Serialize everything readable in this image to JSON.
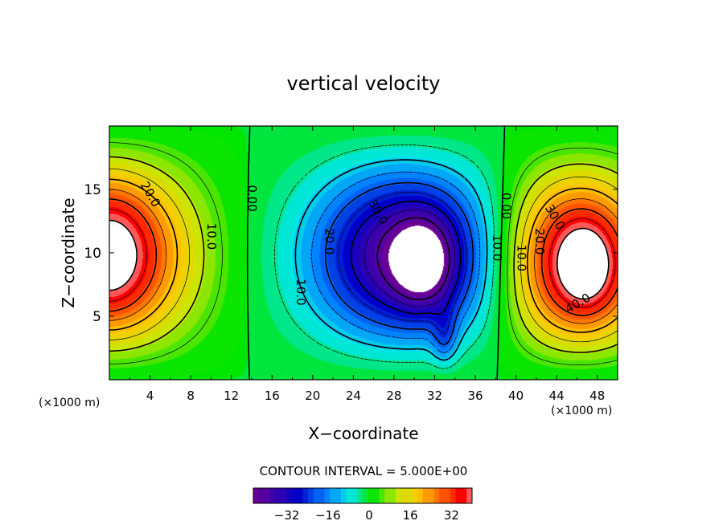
{
  "chart_data": {
    "type": "heatmap",
    "title": "vertical velocity",
    "xlabel": "X−coordinate",
    "ylabel": "Z−coordinate",
    "x_unit_left": "(×1000 m)",
    "x_unit_right": "(×1000 m)",
    "xlim": [
      0,
      50
    ],
    "ylim": [
      0,
      20
    ],
    "xticks": [
      4,
      8,
      12,
      16,
      20,
      24,
      28,
      32,
      36,
      40,
      44,
      48
    ],
    "yticks": [
      5,
      10,
      15
    ],
    "contour_interval_label": "CONTOUR INTERVAL = 5.000E+00",
    "colorbar": {
      "min": -45,
      "max": 40,
      "ticks": [
        -32,
        -16,
        0,
        16,
        32
      ],
      "tick_labels": [
        "−32",
        "−16",
        "0",
        "16",
        "32"
      ]
    },
    "contour_labels": [
      {
        "text": "20.0",
        "x": 4.0,
        "y": 14.6,
        "rot": 60
      },
      {
        "text": "10.0",
        "x": 10.0,
        "y": 11.3,
        "rot": 90
      },
      {
        "text": "0.00",
        "x": 14.0,
        "y": 14.3,
        "rot": 90
      },
      {
        "text": "10.0",
        "x": 18.8,
        "y": 6.9,
        "rot": 90
      },
      {
        "text": "20.0",
        "x": 21.6,
        "y": 10.9,
        "rot": 90
      },
      {
        "text": "30.0",
        "x": 26.4,
        "y": 13.2,
        "rot": 60
      },
      {
        "text": "10.0",
        "x": 38.1,
        "y": 10.4,
        "rot": 90
      },
      {
        "text": "0.00",
        "x": 39.0,
        "y": 13.7,
        "rot": 90
      },
      {
        "text": "10.0",
        "x": 40.5,
        "y": 9.6,
        "rot": 90
      },
      {
        "text": "20.0",
        "x": 42.3,
        "y": 10.9,
        "rot": 90
      },
      {
        "text": "30.0",
        "x": 43.8,
        "y": 12.8,
        "rot": 60
      },
      {
        "text": "40.0",
        "x": 46.1,
        "y": 6.0,
        "rot": -30
      }
    ],
    "cells": [
      {
        "cx": 0,
        "cy": 9.5,
        "rx": 8,
        "ry": 11,
        "amp": 40
      },
      {
        "cx": 0,
        "cy": 9.5,
        "rx": 3.5,
        "ry": 6,
        "amp": 8
      },
      {
        "cx": 46,
        "cy": 8.5,
        "rx": 7,
        "ry": 10,
        "amp": 44
      },
      {
        "cx": 47,
        "cy": 8.5,
        "rx": 2.5,
        "ry": 3.5,
        "amp": 10
      },
      {
        "cx": 29,
        "cy": 9.5,
        "rx": 9,
        "ry": 10,
        "amp": -42
      },
      {
        "cx": 31,
        "cy": 9,
        "rx": 3,
        "ry": 4,
        "amp": -18
      },
      {
        "cx": 33,
        "cy": 2.5,
        "rx": 1.2,
        "ry": 2.5,
        "amp": -25
      }
    ]
  }
}
